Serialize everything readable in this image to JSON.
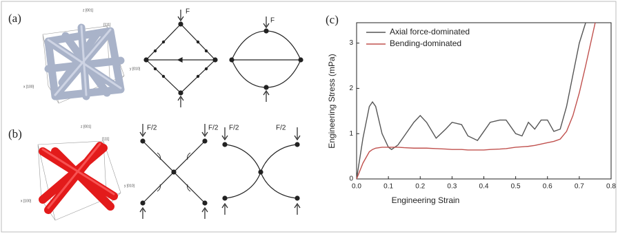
{
  "panel_labels": [
    "(a)",
    "(b)",
    "(c)"
  ],
  "cube_labels": {
    "a": [
      "z [001]",
      "[111]",
      "y [010]",
      "x [100]"
    ],
    "b": [
      "z [001]",
      "[111]",
      "y [010]",
      "x [100]"
    ]
  },
  "force_labels": {
    "a": [
      "F",
      "F"
    ],
    "b": [
      "F/2",
      "F/2",
      "F/2",
      "F/2"
    ]
  },
  "chart_data": {
    "type": "line",
    "x_label": "Engineering Strain",
    "y_label": "Engineering Stress (mPa)",
    "x": [
      0,
      0.02,
      0.04,
      0.05,
      0.06,
      0.08,
      0.1,
      0.11,
      0.13,
      0.15,
      0.18,
      0.2,
      0.22,
      0.25,
      0.28,
      0.3,
      0.33,
      0.35,
      0.38,
      0.4,
      0.42,
      0.45,
      0.47,
      0.5,
      0.52,
      0.54,
      0.56,
      0.58,
      0.6,
      0.62,
      0.64,
      0.66,
      0.68,
      0.7,
      0.72,
      0.75
    ],
    "series": [
      {
        "name": "Axial force-dominated",
        "color": "#555555",
        "values": [
          0,
          0.9,
          1.6,
          1.7,
          1.6,
          1.0,
          0.7,
          0.65,
          0.75,
          0.95,
          1.25,
          1.4,
          1.25,
          0.9,
          1.1,
          1.25,
          1.2,
          0.95,
          0.85,
          1.05,
          1.25,
          1.3,
          1.3,
          1.0,
          0.95,
          1.25,
          1.1,
          1.3,
          1.3,
          1.05,
          1.1,
          1.6,
          2.3,
          3.0,
          3.45,
          null
        ]
      },
      {
        "name": "Bending-dominated",
        "color": "#c0504d",
        "values": [
          0,
          0.35,
          0.6,
          0.65,
          0.68,
          0.7,
          0.7,
          0.7,
          0.7,
          0.69,
          0.68,
          0.68,
          0.68,
          0.67,
          0.66,
          0.65,
          0.65,
          0.64,
          0.64,
          0.64,
          0.65,
          0.66,
          0.67,
          0.7,
          0.71,
          0.72,
          0.74,
          0.77,
          0.8,
          0.83,
          0.88,
          1.05,
          1.4,
          1.9,
          2.5,
          3.45
        ]
      }
    ],
    "xlim": [
      0,
      0.8
    ],
    "xticks": [
      {
        "value": 0,
        "label": "0.0"
      },
      0.1,
      0.2,
      0.3,
      0.4,
      0.5,
      0.6,
      0.7,
      0.8
    ],
    "ylim": [
      0,
      3.45
    ],
    "yticks": [
      0,
      1,
      2,
      3
    ],
    "legend": "top-left"
  }
}
